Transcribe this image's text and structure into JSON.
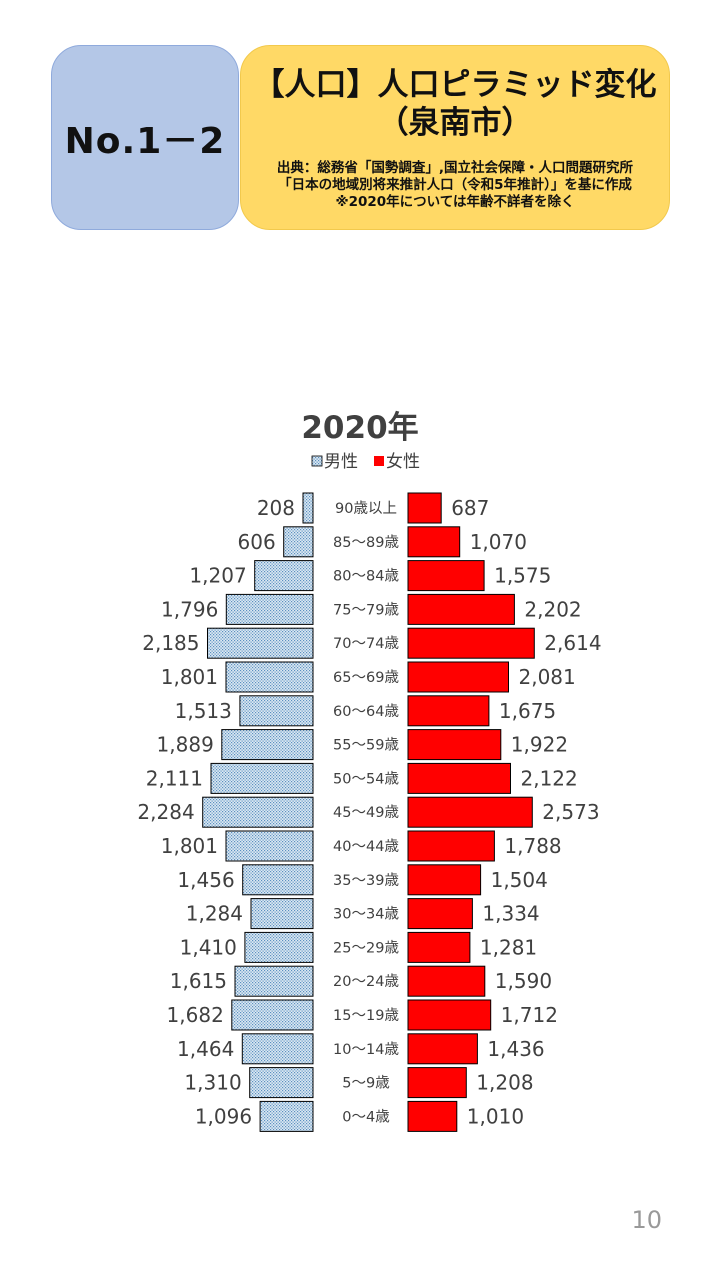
{
  "header": {
    "number_label": "No.1－2",
    "title_line1": "【人口】人口ピラミッド変化",
    "title_line2": "（泉南市）",
    "source_line1": "出典：総務省「国勢調査」,国立社会保障・人口問題研究所",
    "source_line2": "「日本の地域別将来推計人口（令和5年推計）」を基に作成",
    "source_line3": "※2020年については年齢不詳者を除く"
  },
  "colors": {
    "male_fill": "#dde9f3",
    "male_dots": "#5a8fc0",
    "female_fill": "#ff0000",
    "text": "#404040"
  },
  "chart_data": {
    "type": "bar",
    "subtype": "population-pyramid",
    "title": "2020年",
    "legend": [
      "男性",
      "女性"
    ],
    "legend_position": "top",
    "categories": [
      "90歳以上",
      "85～89歳",
      "80～84歳",
      "75～79歳",
      "70～74歳",
      "65～69歳",
      "60～64歳",
      "55～59歳",
      "50～54歳",
      "45～49歳",
      "40～44歳",
      "35～39歳",
      "30～34歳",
      "25～29歳",
      "20～24歳",
      "15～19歳",
      "10～14歳",
      "5～9歳",
      "0～4歳"
    ],
    "series": [
      {
        "name": "男性",
        "values": [
          208,
          606,
          1207,
          1796,
          2185,
          1801,
          1513,
          1889,
          2111,
          2284,
          1801,
          1456,
          1284,
          1410,
          1615,
          1682,
          1464,
          1310,
          1096
        ]
      },
      {
        "name": "女性",
        "values": [
          687,
          1070,
          1575,
          2202,
          2614,
          2081,
          1675,
          1922,
          2122,
          2573,
          1788,
          1504,
          1334,
          1281,
          1590,
          1712,
          1436,
          1208,
          1010
        ]
      }
    ],
    "data_labels": {
      "male": [
        "208",
        "606",
        "1,207",
        "1,796",
        "2,185",
        "1,801",
        "1,513",
        "1,889",
        "2,111",
        "2,284",
        "1,801",
        "1,456",
        "1,284",
        "1,410",
        "1,615",
        "1,682",
        "1,464",
        "1,310",
        "1,096"
      ],
      "female": [
        "687",
        "1,070",
        "1,575",
        "2,202",
        "2,614",
        "2,081",
        "1,675",
        "1,922",
        "2,122",
        "2,573",
        "1,788",
        "1,504",
        "1,334",
        "1,281",
        "1,590",
        "1,712",
        "1,436",
        "1,208",
        "1,010"
      ]
    }
  },
  "footer": {
    "page_number": "10"
  }
}
